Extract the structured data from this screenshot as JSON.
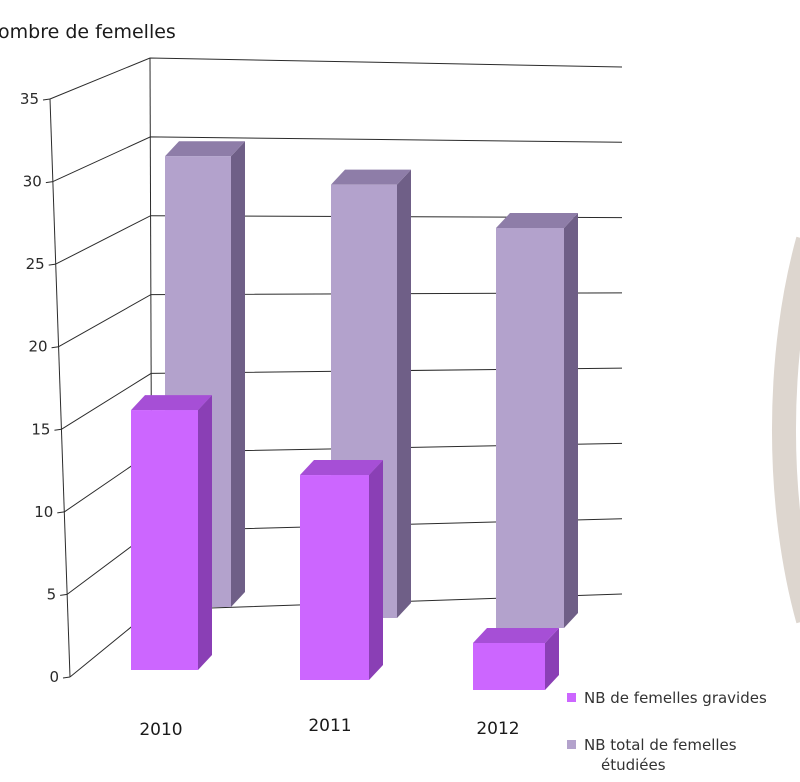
{
  "colors": {
    "gravides_front": "#cc66ff",
    "gravides_side": "#8a3fb5",
    "gravides_top": "#a64fd6",
    "total_front": "#b3a2cc",
    "total_side": "#6f5f87",
    "total_top": "#8e7da8",
    "grid": "#2b2b2b",
    "deco_arc": "#ddd6cf"
  },
  "chart_data": {
    "type": "bar",
    "style": "3d-clustered-depth",
    "ylabel": "ombre  de femelles",
    "categories": [
      "2010",
      "2011",
      "2012"
    ],
    "y_ticks": [
      "0",
      "5",
      "10",
      "15",
      "20",
      "25",
      "30",
      "35"
    ],
    "ylim": [
      0,
      35
    ],
    "grid": true,
    "legend_position": "bottom-right",
    "series": [
      {
        "name": "NB de femelles gravides",
        "values": [
          15,
          12,
          2
        ]
      },
      {
        "name": "NB total de femelles étudiées",
        "values": [
          28,
          27,
          25
        ]
      }
    ]
  }
}
